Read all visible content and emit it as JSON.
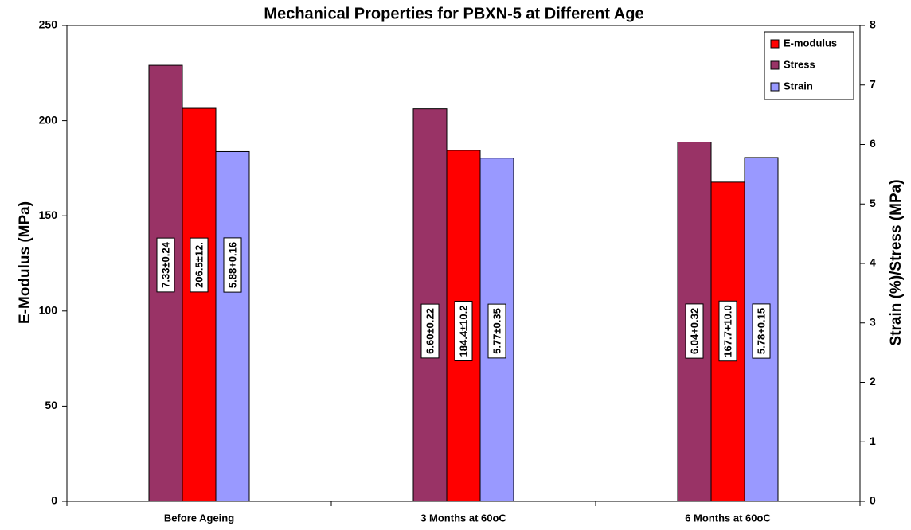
{
  "chart_data": {
    "type": "bar",
    "title": "Mechanical Properties for PBXN-5 at Different Age",
    "y_label": "E-Modulus (MPa)",
    "y2_label": "Strain (%)/Stress (MPa)",
    "categories": [
      "Before Ageing",
      "3 Months at 60oC",
      "6 Months at 60oC"
    ],
    "series": [
      {
        "name": "E-modulus",
        "color": "#ff0000",
        "values": [
          206.5,
          184.4,
          167.7
        ],
        "value_labels": [
          "206.5±12.",
          "184.4±10.2",
          "167.7+10.0"
        ]
      },
      {
        "name": "Stress",
        "color": "#993366",
        "axis": "y2",
        "values": [
          7.33,
          6.6,
          6.04
        ],
        "value_labels": [
          "7.33±0.24",
          "6.60±0.22",
          "6.04+0.32"
        ]
      },
      {
        "name": "Strain",
        "color": "#9999ff",
        "axis": "y2",
        "values": [
          5.88,
          5.77,
          5.78
        ],
        "value_labels": [
          "5.88+0.16",
          "5.77±0.35",
          "5.78+0.15"
        ]
      }
    ],
    "ylim": [
      0,
      250
    ],
    "yticks": [
      0,
      50,
      100,
      150,
      200,
      250
    ],
    "y2lim": [
      0,
      8
    ],
    "y2ticks": [
      0,
      1,
      2,
      3,
      4,
      5,
      6,
      7,
      8
    ],
    "legend": "top-right",
    "grid": false
  }
}
